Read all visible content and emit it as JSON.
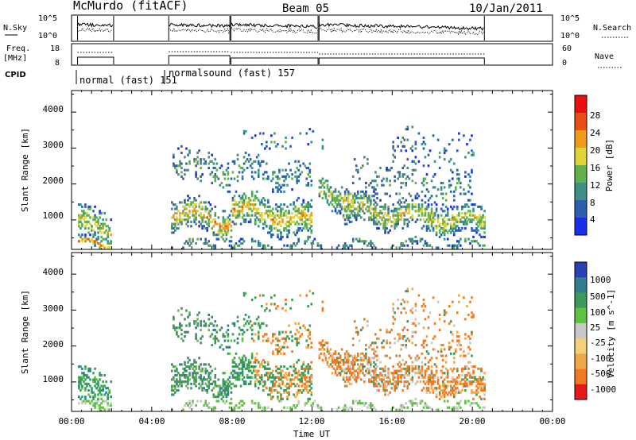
{
  "header": {
    "station": "McMurdo (fitACF)",
    "beam": "Beam 05",
    "date": "10/Jan/2011"
  },
  "left_labels": {
    "nsky": "N.Sky",
    "freq_line1": "Freq.",
    "freq_line2": "[MHz]",
    "cpid": "CPID"
  },
  "right_labels": {
    "nsearch": "N.Search",
    "nave": "Nave"
  },
  "noise_panel": {
    "left_ticks": [
      "10^5",
      "10^0"
    ],
    "right_ticks": [
      "10^5",
      "10^0"
    ]
  },
  "freq_panel": {
    "left_ticks": [
      "18",
      "8"
    ],
    "right_ticks": [
      "60",
      "0"
    ]
  },
  "cpid_panel": {
    "modes": [
      {
        "label": "normal (fast) 151",
        "start_hour": 0.0
      },
      {
        "label": "normalsound (fast) 157",
        "start_hour": 4.85
      }
    ]
  },
  "time_axis": {
    "ticks": [
      "00:00",
      "04:00",
      "08:00",
      "12:00",
      "16:00",
      "20:00",
      "00:00"
    ],
    "title": "Time UT"
  },
  "power_panel": {
    "ylabel": "Slant Range [km]",
    "yticks": [
      "1000",
      "2000",
      "3000",
      "4000"
    ],
    "colorbar_label": "Power [dB]",
    "colorbar_ticks": [
      "4",
      "8",
      "12",
      "16",
      "20",
      "24",
      "28"
    ],
    "colors": [
      "#1a2ee8",
      "#2c5fb0",
      "#3f8f86",
      "#62b04d",
      "#e0d23a",
      "#f09a1c",
      "#e74f14",
      "#e81010"
    ]
  },
  "velocity_panel": {
    "ylabel": "Slant Range [km]",
    "yticks": [
      "1000",
      "2000",
      "3000",
      "4000"
    ],
    "colorbar_label": "Velocity [m s^-1]",
    "colorbar_ticks": [
      "1000",
      "500",
      "100",
      "25",
      "-25",
      "-100",
      "-500",
      "-1000"
    ],
    "colors": [
      "#2a3fb3",
      "#2f7f8f",
      "#3c9a5c",
      "#5fc042",
      "#c8c8c8",
      "#f0d27a",
      "#f2a64a",
      "#ef7a22",
      "#e81818"
    ]
  },
  "chart_data": {
    "type": "heatmap",
    "title": "McMurdo (fitACF)",
    "x_range_hours": [
      0,
      24
    ],
    "y_range_km": [
      180,
      4600
    ],
    "xlabel": "Time UT",
    "ylabel": "Slant Range [km]",
    "data_gaps_hours": [
      [
        2.1,
        4.8
      ],
      [
        20.6,
        24
      ]
    ],
    "echo_regions": [
      {
        "time_start": 0.3,
        "time_end": 2.0,
        "range_min": 200,
        "range_max": 1700
      },
      {
        "time_start": 4.9,
        "time_end": 8.0,
        "range_min": 200,
        "range_max": 3300
      },
      {
        "time_start": 8.0,
        "time_end": 12.0,
        "range_min": 200,
        "range_max": 3000
      },
      {
        "time_start": 12.3,
        "time_end": 20.6,
        "range_min": 200,
        "range_max": 3500
      }
    ]
  }
}
